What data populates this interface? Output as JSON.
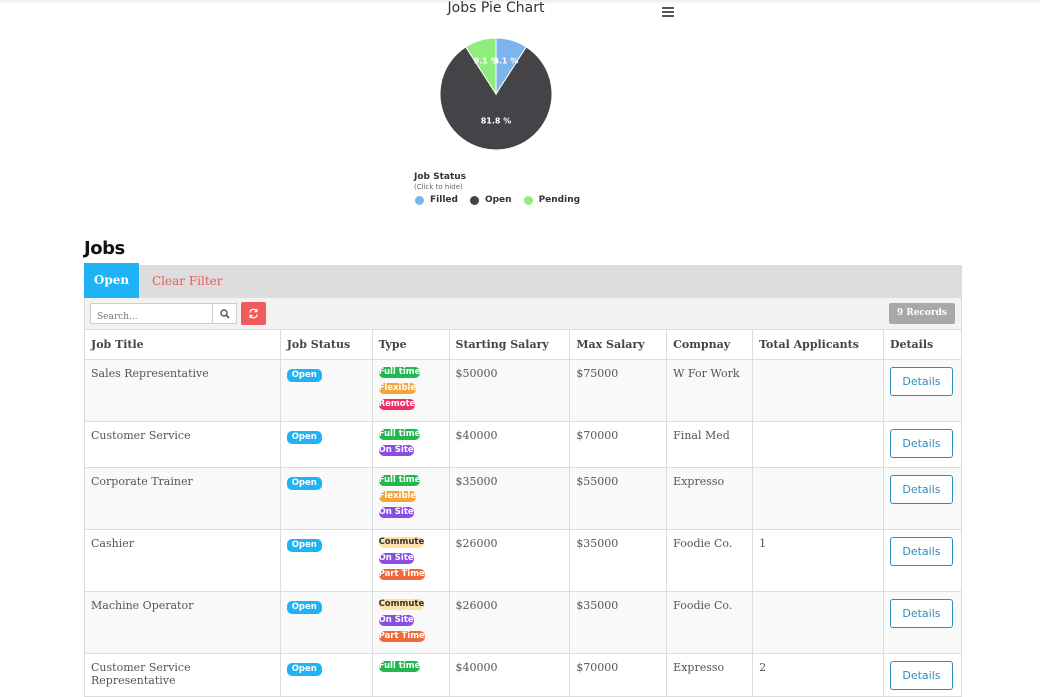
{
  "chart": {
    "title": "Jobs Pie Chart",
    "legend_title": "Job Status",
    "legend_subtitle": "(Click to hide)"
  },
  "chart_data": {
    "type": "pie",
    "title": "Jobs Pie Chart",
    "legend_title": "Job Status",
    "legend_placement": "bottom-left",
    "categories": [
      "Filled",
      "Open",
      "Pending"
    ],
    "values": [
      9.1,
      81.8,
      9.1
    ],
    "labels": [
      "9.1 %",
      "81.8 %",
      "9.1 %"
    ],
    "colors": [
      "#7cb5ec",
      "#434348",
      "#90ed7d"
    ]
  },
  "section_title": "Jobs",
  "filters": {
    "active_tab": "Open",
    "clear_label": "Clear Filter"
  },
  "search": {
    "placeholder": "Search..."
  },
  "records_label": "9 Records",
  "table": {
    "headers": [
      "Job Title",
      "Job Status",
      "Type",
      "Starting Salary",
      "Max Salary",
      "Compnay",
      "Total Applicants",
      "Details"
    ],
    "details_label": "Details",
    "rows": [
      {
        "title": "Sales Representative",
        "status": "Open",
        "types": [
          {
            "label": "Full time",
            "kind": "full"
          },
          {
            "label": "Flexible",
            "kind": "flex"
          },
          {
            "label": "Remote",
            "kind": "remote"
          }
        ],
        "start": "$50000",
        "max": "$75000",
        "company": "W For Work",
        "applicants": ""
      },
      {
        "title": "Customer Service",
        "status": "Open",
        "types": [
          {
            "label": "Full time",
            "kind": "full"
          },
          {
            "label": "On Site",
            "kind": "onsite"
          }
        ],
        "start": "$40000",
        "max": "$70000",
        "company": "Final Med",
        "applicants": ""
      },
      {
        "title": "Corporate Trainer",
        "status": "Open",
        "types": [
          {
            "label": "Full time",
            "kind": "full"
          },
          {
            "label": "Flexible",
            "kind": "flex"
          },
          {
            "label": "On Site",
            "kind": "onsite"
          }
        ],
        "start": "$35000",
        "max": "$55000",
        "company": "Expresso",
        "applicants": ""
      },
      {
        "title": "Cashier",
        "status": "Open",
        "types": [
          {
            "label": "Commute",
            "kind": "commute"
          },
          {
            "label": "On Site",
            "kind": "onsite"
          },
          {
            "label": "Part Time",
            "kind": "part"
          }
        ],
        "start": "$26000",
        "max": "$35000",
        "company": "Foodie Co.",
        "applicants": "1"
      },
      {
        "title": "Machine Operator",
        "status": "Open",
        "types": [
          {
            "label": "Commute",
            "kind": "commute"
          },
          {
            "label": "On Site",
            "kind": "onsite"
          },
          {
            "label": "Part Time",
            "kind": "part"
          }
        ],
        "start": "$26000",
        "max": "$35000",
        "company": "Foodie Co.",
        "applicants": ""
      },
      {
        "title": "Customer Service Representative",
        "status": "Open",
        "types": [
          {
            "label": "Full time",
            "kind": "full"
          }
        ],
        "start": "$40000",
        "max": "$70000",
        "company": "Expresso",
        "applicants": "2"
      }
    ]
  }
}
